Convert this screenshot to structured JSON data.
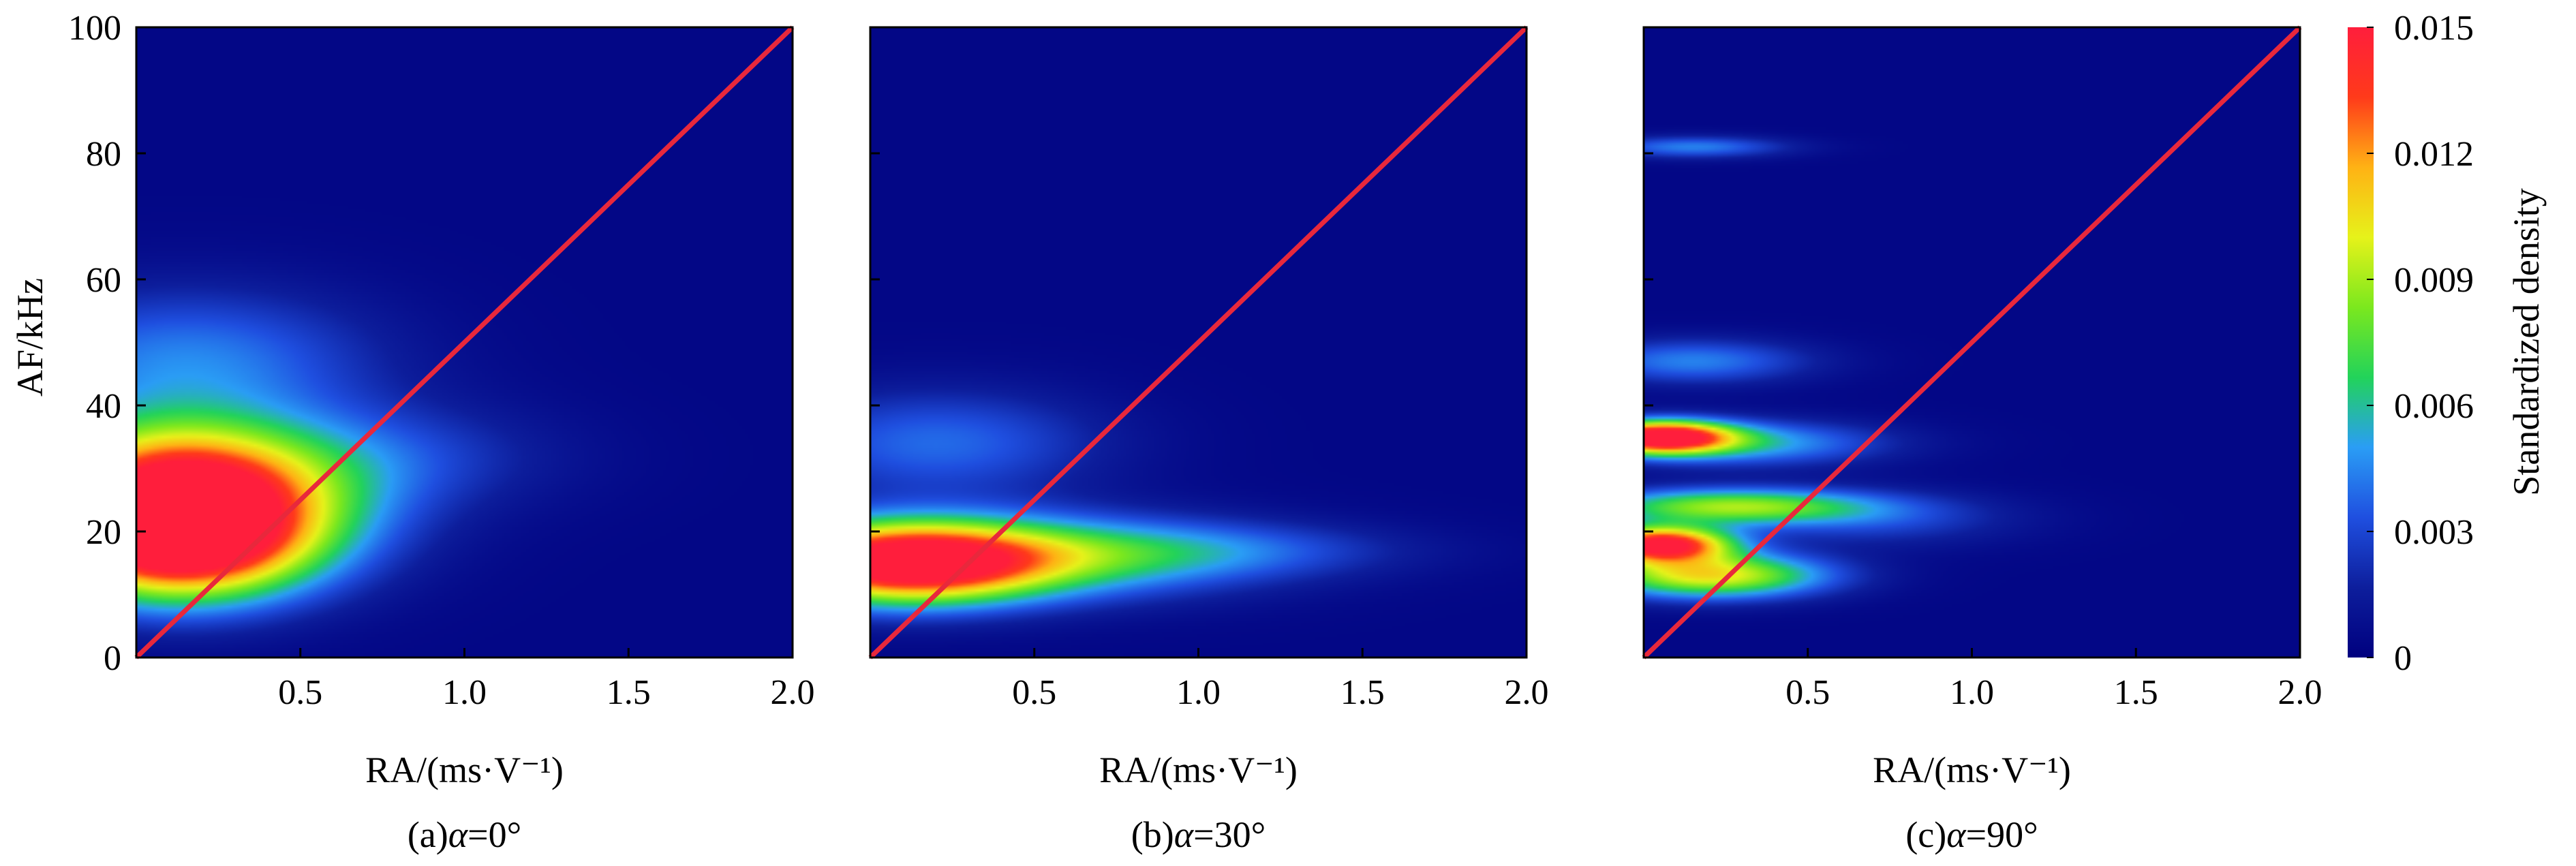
{
  "chart_data": {
    "type": "heatmap",
    "shared": {
      "xlabel": "RA/(ms·V⁻¹)",
      "ylabel": "AF/kHz",
      "xlim": [
        0,
        2.0
      ],
      "ylim": [
        0,
        100
      ],
      "xticks": [
        "0.5",
        "1.0",
        "1.5",
        "2.0"
      ],
      "xtick_values": [
        0.5,
        1.0,
        1.5,
        2.0
      ],
      "yticks": [
        "0",
        "20",
        "40",
        "60",
        "80",
        "100"
      ],
      "ytick_values": [
        0,
        20,
        40,
        60,
        80,
        100
      ],
      "reference_line": {
        "from": [
          0,
          0
        ],
        "to": [
          2.0,
          100
        ],
        "color": "#e8283c"
      },
      "colormap": [
        "#00007f",
        "#0d1e9c",
        "#1f4fe0",
        "#2a9df5",
        "#22d35a",
        "#7be81e",
        "#e6f21a",
        "#ffb214",
        "#ff3a1a",
        "#ff1e3c"
      ]
    },
    "colorbar": {
      "label": "Standardized density",
      "range": [
        0,
        0.015
      ],
      "ticks": [
        "0",
        "0.003",
        "0.006",
        "0.009",
        "0.012",
        "0.015"
      ],
      "tick_values": [
        0,
        0.003,
        0.006,
        0.009,
        0.012,
        0.015
      ]
    },
    "panels": [
      {
        "caption_prefix": "(a)",
        "caption_symbol": "α",
        "caption_suffix": "=0°",
        "blobs": [
          {
            "ra": 0.12,
            "af": 18,
            "sra": 0.28,
            "saf": 6.5,
            "peak": 0.015
          },
          {
            "ra": 0.1,
            "af": 28,
            "sra": 0.3,
            "saf": 7,
            "peak": 0.011
          },
          {
            "ra": 0.4,
            "af": 24,
            "sra": 0.32,
            "saf": 8,
            "peak": 0.004
          },
          {
            "ra": 0.15,
            "af": 47,
            "sra": 0.4,
            "saf": 8,
            "peak": 0.004
          },
          {
            "ra": 0.8,
            "af": 32,
            "sra": 0.35,
            "saf": 6,
            "peak": 0.002
          }
        ]
      },
      {
        "caption_prefix": "(b)",
        "caption_symbol": "α",
        "caption_suffix": "=30°",
        "blobs": [
          {
            "ra": 0.1,
            "af": 15,
            "sra": 0.3,
            "saf": 4.5,
            "peak": 0.015
          },
          {
            "ra": 0.55,
            "af": 16,
            "sra": 0.45,
            "saf": 4.5,
            "peak": 0.006
          },
          {
            "ra": 1.1,
            "af": 17,
            "sra": 0.4,
            "saf": 3,
            "peak": 0.002
          },
          {
            "ra": 0.2,
            "af": 34,
            "sra": 0.35,
            "saf": 6,
            "peak": 0.0035
          }
        ]
      },
      {
        "caption_prefix": "(c)",
        "caption_symbol": "α",
        "caption_suffix": "=90°",
        "blobs": [
          {
            "ra": 0.05,
            "af": 18,
            "sra": 0.15,
            "saf": 2,
            "peak": 0.015
          },
          {
            "ra": 0.2,
            "af": 13,
            "sra": 0.25,
            "saf": 2.5,
            "peak": 0.01
          },
          {
            "ra": 0.25,
            "af": 24,
            "sra": 0.3,
            "saf": 2,
            "peak": 0.008
          },
          {
            "ra": 0.05,
            "af": 35,
            "sra": 0.15,
            "saf": 1.8,
            "peak": 0.015
          },
          {
            "ra": 0.3,
            "af": 34,
            "sra": 0.3,
            "saf": 2.5,
            "peak": 0.005
          },
          {
            "ra": 0.15,
            "af": 47,
            "sra": 0.25,
            "saf": 2.5,
            "peak": 0.004
          },
          {
            "ra": 0.15,
            "af": 81,
            "sra": 0.2,
            "saf": 1.2,
            "peak": 0.004
          },
          {
            "ra": 0.7,
            "af": 22,
            "sra": 0.3,
            "saf": 3,
            "peak": 0.0025
          }
        ]
      }
    ]
  }
}
